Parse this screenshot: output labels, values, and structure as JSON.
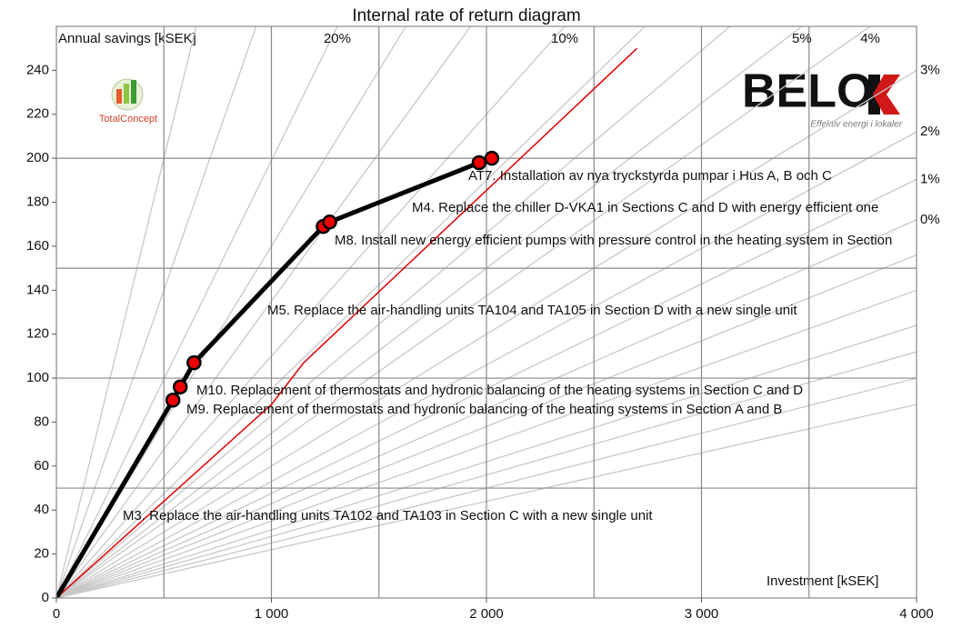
{
  "chart_data": {
    "type": "line",
    "title": "Internal rate of return diagram",
    "y_label": "Annual savings [kSEK]",
    "x_label": "Investment [kSEK]",
    "xlim": [
      0,
      4000
    ],
    "ylim": [
      0,
      260
    ],
    "xticks": [
      0,
      {
        "value": 1000,
        "label": "1 000"
      },
      {
        "value": 2000,
        "label": "2 000"
      },
      {
        "value": 3000,
        "label": "3 000"
      },
      {
        "value": 4000,
        "label": "4 000"
      }
    ],
    "yticks": [
      0,
      20,
      40,
      60,
      80,
      100,
      120,
      140,
      160,
      180,
      200,
      220,
      240
    ],
    "grid_x": [
      500,
      1000,
      1500,
      2000,
      2500,
      3000,
      3500
    ],
    "grid_y": [
      50,
      100,
      150,
      200
    ],
    "irr_lines": [
      {
        "label": "20%",
        "slope": 0.199
      },
      {
        "label": "10%",
        "slope": 0.11
      },
      {
        "label": "5%",
        "slope": 0.075
      },
      {
        "label": "4%",
        "slope": 0.0687
      },
      {
        "label": "3%",
        "slope": 0.06
      },
      {
        "label": "2%",
        "slope": 0.053
      },
      {
        "label": "1%",
        "slope": 0.0476
      },
      {
        "label": "0%",
        "slope": 0.043
      }
    ],
    "other_irr_slopes": [
      0.4,
      0.28,
      0.16,
      0.135,
      0.095,
      0.083,
      0.039,
      0.035,
      0.031,
      0.028,
      0.025,
      0.022
    ],
    "irr_color": "#c8c8c8",
    "series": [
      {
        "color": "#e00000",
        "x": [
          0,
          1000,
          1150,
          2700
        ],
        "values": [
          0,
          88,
          107,
          250
        ]
      },
      {
        "color": "#000000",
        "marker_color": "#ee0000",
        "x": [
          0,
          542,
          576,
          640,
          1241,
          1271,
          1966,
          2025
        ],
        "values": [
          0,
          90,
          96,
          107,
          169,
          171,
          198,
          200
        ]
      }
    ],
    "annotations": [
      "AT7. Installation av nya tryckstyrda pumpar i Hus A, B och C",
      "M4. Replace the chiller D-VKA1 in Sections C and D with energy efficient one",
      "M8. Install new energy efficient pumps with pressure control in the heating system in Section",
      "M5. Replace the air-handling units TA104 and TA105 in Section D with a new single unit",
      "M10. Replacement of thermostats and hydronic balancing of the heating systems in Section C and D",
      "M9. Replacement of thermostats and hydronic balancing of the heating systems in Section A and B",
      "M3. Replace the air-handling units TA102 and TA103 in Section C with a new single unit"
    ],
    "logos": {
      "left": "TotalConcept",
      "right": "BELO",
      "right_tagline": "Effektiv energi i lokaler"
    }
  }
}
